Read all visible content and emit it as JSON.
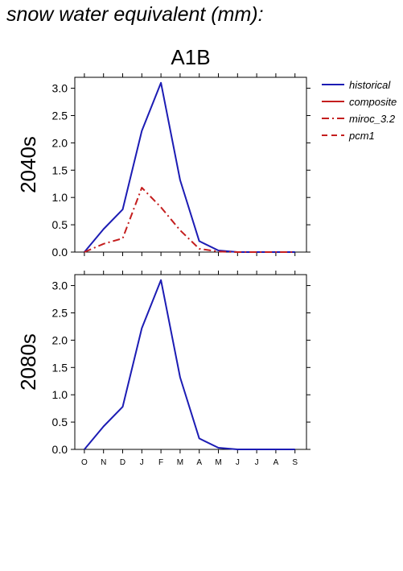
{
  "page_title": "snow water equivalent (mm):",
  "chart_data": {
    "type": "line",
    "title": "A1B",
    "months": [
      "O",
      "N",
      "D",
      "J",
      "F",
      "M",
      "A",
      "M",
      "J",
      "J",
      "A",
      "S"
    ],
    "ylim": [
      0,
      3.2
    ],
    "yticks": [
      "0.0",
      "0.5",
      "1.0",
      "1.5",
      "2.0",
      "2.5",
      "3.0"
    ],
    "legend": [
      {
        "name": "historical",
        "color": "#1c1cb4",
        "dash": "solid"
      },
      {
        "name": "composite",
        "color": "#c41e1e",
        "dash": "solid"
      },
      {
        "name": "miroc_3.2",
        "color": "#c41e1e",
        "dash": "dashdot"
      },
      {
        "name": "pcm1",
        "color": "#c41e1e",
        "dash": "dashed"
      }
    ],
    "panels": [
      {
        "label": "2040s",
        "series": [
          {
            "name": "historical",
            "color": "#1c1cb4",
            "dash": "solid",
            "values": [
              0.0,
              0.42,
              0.78,
              2.22,
              3.1,
              1.32,
              0.2,
              0.03,
              0.0,
              0.0,
              0.0,
              0.0
            ]
          },
          {
            "name": "miroc_3.2",
            "color": "#c41e1e",
            "dash": "dashdot",
            "values": [
              0.0,
              0.15,
              0.25,
              1.18,
              0.82,
              0.4,
              0.06,
              0.01,
              0.0,
              0.0,
              0.0,
              0.0
            ]
          }
        ]
      },
      {
        "label": "2080s",
        "series": [
          {
            "name": "historical",
            "color": "#1c1cb4",
            "dash": "solid",
            "values": [
              0.0,
              0.42,
              0.78,
              2.22,
              3.1,
              1.32,
              0.2,
              0.03,
              0.0,
              0.0,
              0.0,
              0.0
            ]
          }
        ]
      }
    ]
  }
}
